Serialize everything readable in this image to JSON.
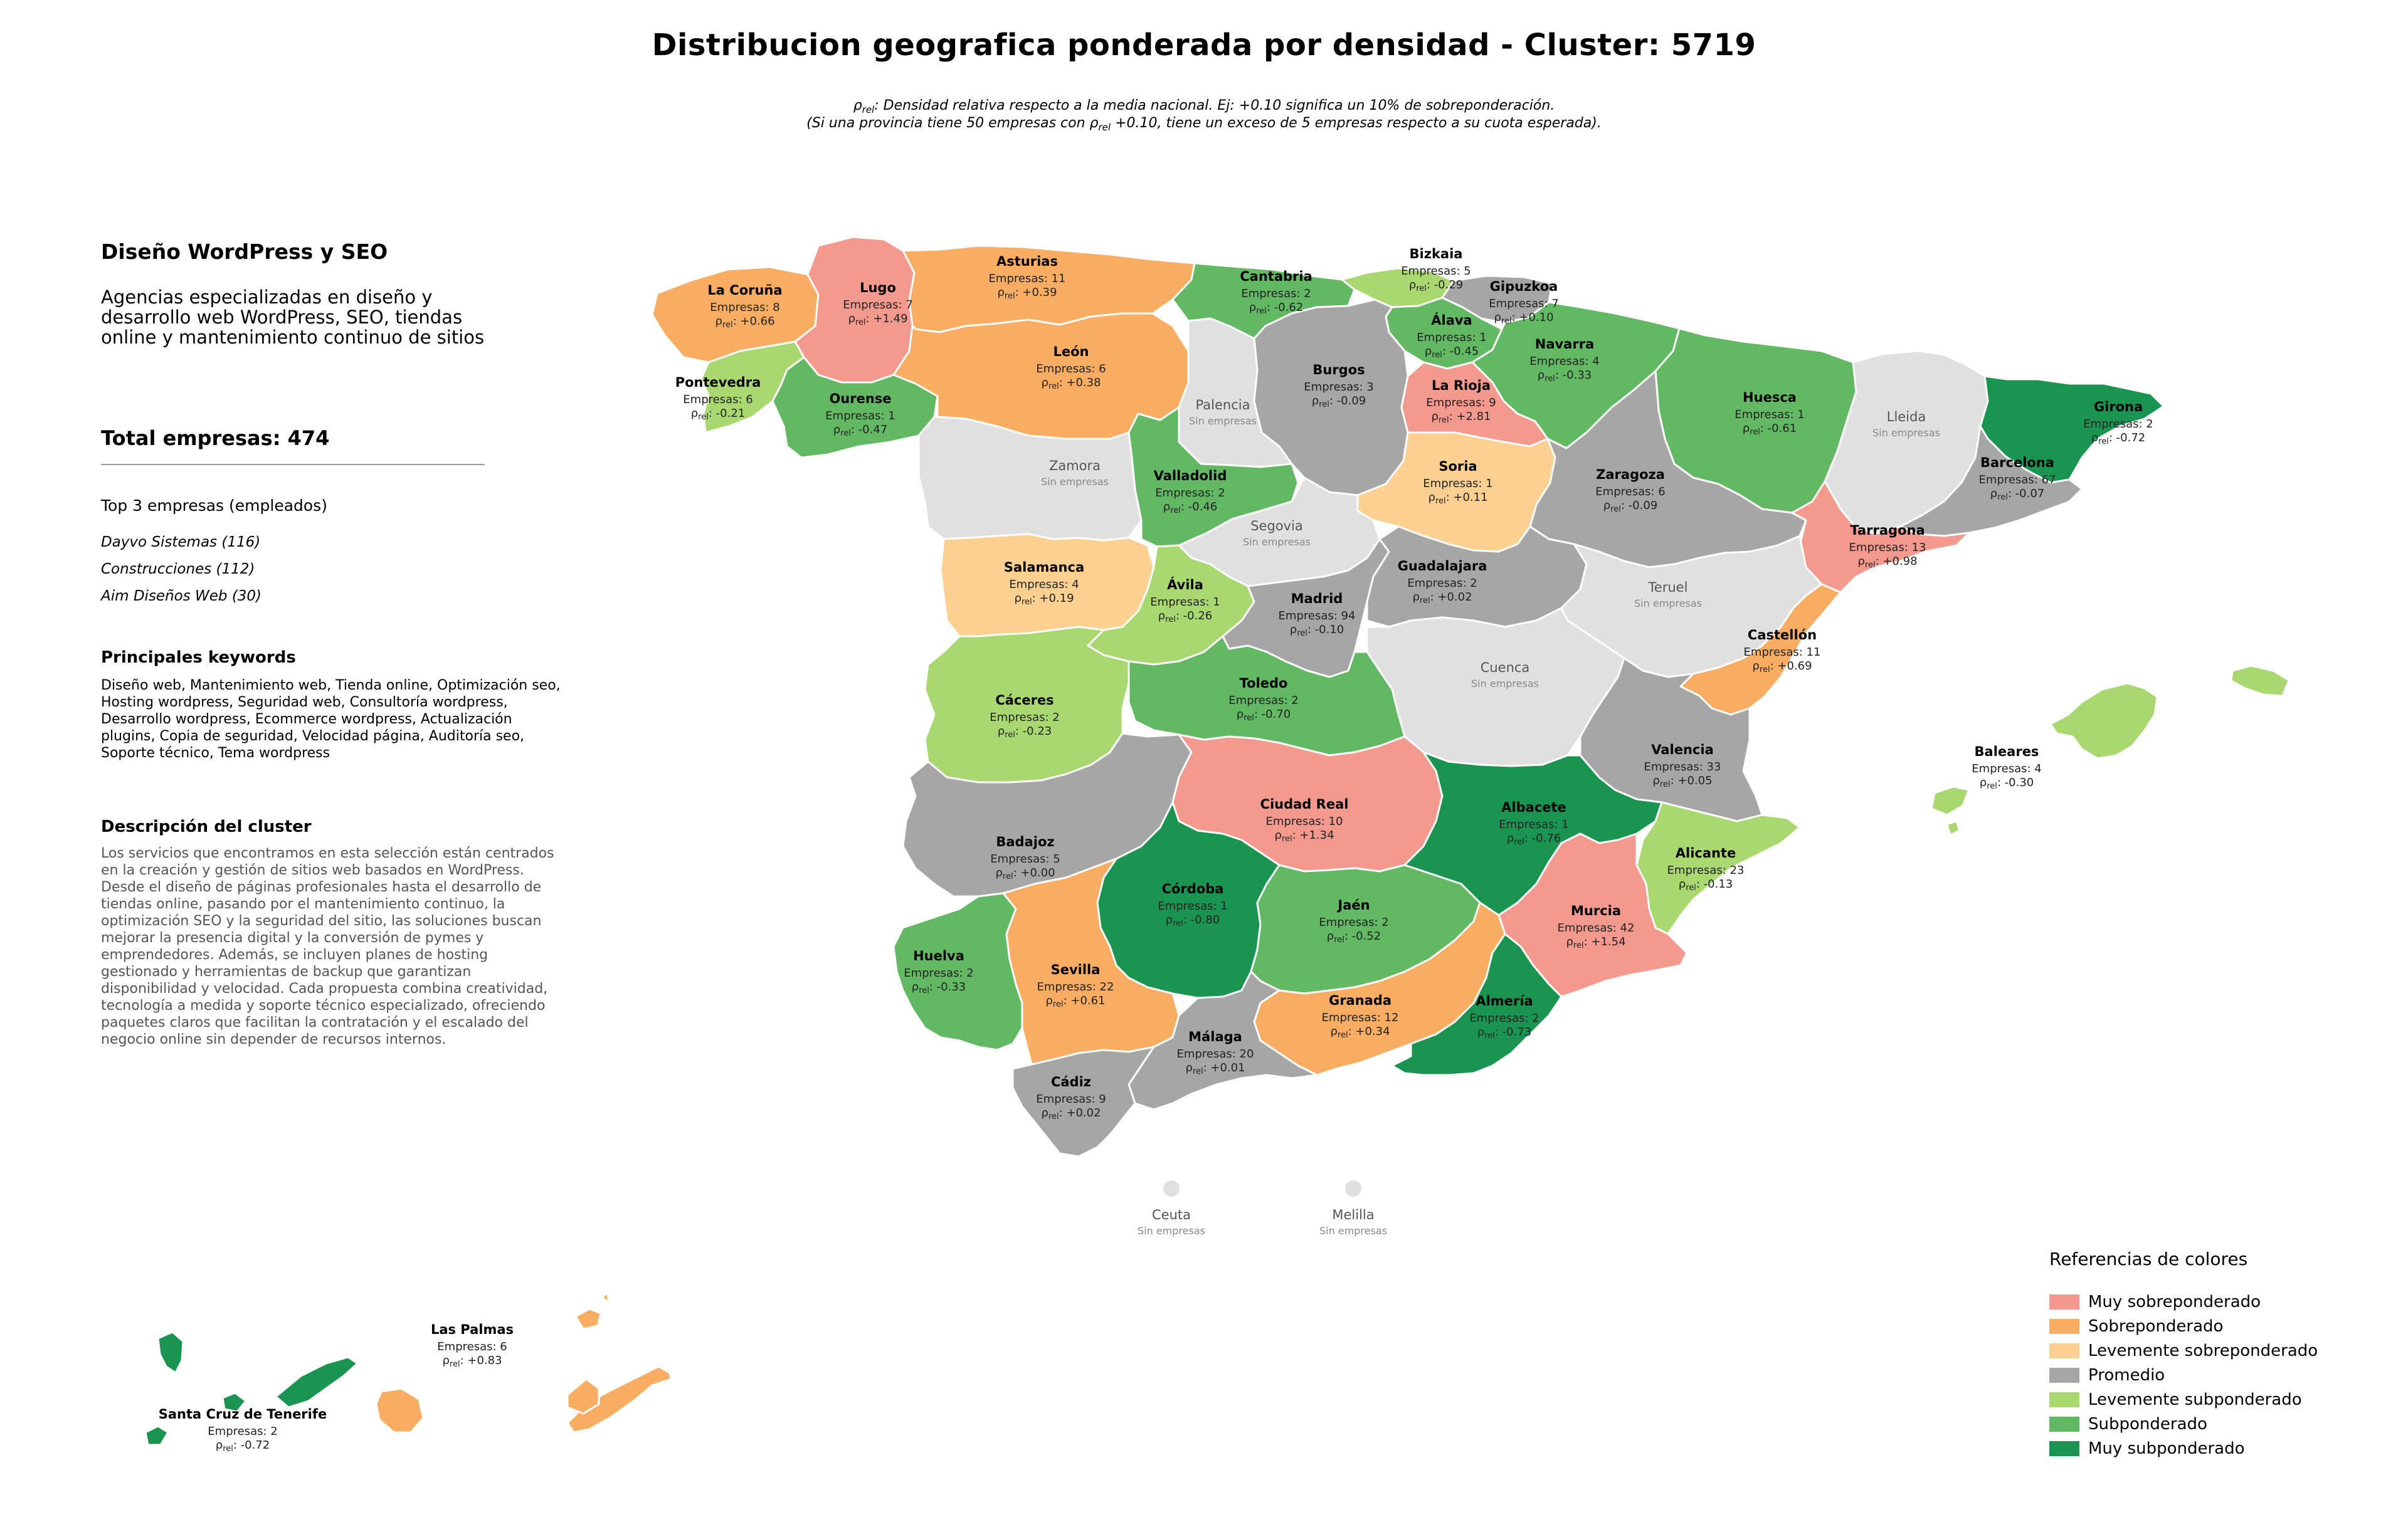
{
  "title": "Distribucion geografica ponderada por densidad - Cluster: 5719",
  "subtitle": {
    "line1_prefix": "ρ",
    "line1_sub": "rel",
    "line1_text": ": Densidad relativa respecto a la media nacional. Ej: +0.10 significa un 10% de sobreponderación.",
    "line2_prefix": "(Si una provincia tiene 50 empresas con ρ",
    "line2_sub": "rel",
    "line2_text": " +0.10, tiene un exceso de 5 empresas respecto a su cuota esperada)."
  },
  "panel": {
    "cluster_name": "Diseño WordPress y SEO",
    "summary": "Agencias especializadas en diseño y desarrollo web WordPress, SEO, tiendas online y mantenimiento continuo de sitios",
    "total": "Total empresas: 474",
    "top3_title": "Top 3 empresas (empleados)",
    "top_companies": [
      "Dayvo Sistemas (116)",
      "Construcciones (112)",
      "Aim Diseños Web (30)"
    ],
    "keywords_title": "Principales keywords",
    "keywords": "Diseño web, Mantenimiento web, Tienda online, Optimización seo, Hosting wordpress, Seguridad web, Consultoría wordpress, Desarrollo wordpress, Ecommerce wordpress, Actualización plugins, Copia de seguridad, Velocidad página, Auditoría seo, Soporte técnico, Tema wordpress",
    "description_title": "Descripción del cluster",
    "description": "Los servicios que encontramos en esta selección están centrados en la creación y gestión de sitios web basados en WordPress. Desde el diseño de páginas profesionales hasta el desarrollo de tiendas online, pasando por el mantenimiento continuo, la optimización SEO y la seguridad del sitio, las soluciones buscan mejorar la presencia digital y la conversión de pymes y emprendedores. Además, se incluyen planes de hosting gestionado y herramientas de backup que garantizan disponibilidad y velocidad. Cada propuesta combina creatividad, tecnología a medida y soporte técnico especializado, ofreciendo paquetes claros que facilitan la contratación y el escalado del negocio online sin depender de recursos internos."
  },
  "strings": {
    "empresas_prefix": "Empresas: ",
    "rho": "ρ",
    "rel": "rel",
    "sin_empresas": "Sin empresas"
  },
  "colors": {
    "muy_sobre": "#f4998d",
    "sobre": "#f9ad63",
    "lev_sobre": "#fcd090",
    "promedio": "#a6a6a6",
    "lev_sub": "#a8d86f",
    "sub": "#62b863",
    "muy_sub": "#1a9551",
    "sin_datos": "#e0e0e0"
  },
  "legend": {
    "title": "Referencias de colores",
    "items": [
      {
        "label": "Muy sobreponderado",
        "color": "#f4998d"
      },
      {
        "label": "Sobreponderado",
        "color": "#f9ad63"
      },
      {
        "label": "Levemente sobreponderado",
        "color": "#fcd090"
      },
      {
        "label": "Promedio",
        "color": "#a6a6a6"
      },
      {
        "label": "Levemente subponderado",
        "color": "#a8d86f"
      },
      {
        "label": "Subponderado",
        "color": "#62b863"
      },
      {
        "label": "Muy subponderado",
        "color": "#1a9551"
      }
    ]
  },
  "chart_data": {
    "type": "choropleth",
    "metric": "rho_rel",
    "provinces": [
      {
        "name": "La Coruña",
        "empresas": 8,
        "rho": "+0.66",
        "category": "sobre"
      },
      {
        "name": "Lugo",
        "empresas": 7,
        "rho": "+1.49",
        "category": "muy_sobre"
      },
      {
        "name": "Asturias",
        "empresas": 11,
        "rho": "+0.39",
        "category": "sobre"
      },
      {
        "name": "Cantabria",
        "empresas": 2,
        "rho": "-0.62",
        "category": "sub"
      },
      {
        "name": "Bizkaia",
        "empresas": 5,
        "rho": "-0.29",
        "category": "lev_sub"
      },
      {
        "name": "Gipuzkoa",
        "empresas": 7,
        "rho": "+0.10",
        "category": "promedio"
      },
      {
        "name": "Álava",
        "empresas": 1,
        "rho": "-0.45",
        "category": "sub"
      },
      {
        "name": "Navarra",
        "empresas": 4,
        "rho": "-0.33",
        "category": "sub"
      },
      {
        "name": "Pontevedra",
        "empresas": 6,
        "rho": "-0.21",
        "category": "lev_sub"
      },
      {
        "name": "Ourense",
        "empresas": 1,
        "rho": "-0.47",
        "category": "sub"
      },
      {
        "name": "León",
        "empresas": 6,
        "rho": "+0.38",
        "category": "sobre"
      },
      {
        "name": "Palencia",
        "empresas": null,
        "rho": null,
        "category": "sin_datos"
      },
      {
        "name": "Burgos",
        "empresas": 3,
        "rho": "-0.09",
        "category": "promedio"
      },
      {
        "name": "La Rioja",
        "empresas": 9,
        "rho": "+2.81",
        "category": "muy_sobre"
      },
      {
        "name": "Huesca",
        "empresas": 1,
        "rho": "-0.61",
        "category": "sub"
      },
      {
        "name": "Lleida",
        "empresas": null,
        "rho": null,
        "category": "sin_datos"
      },
      {
        "name": "Girona",
        "empresas": 2,
        "rho": "-0.72",
        "category": "muy_sub"
      },
      {
        "name": "Zamora",
        "empresas": null,
        "rho": null,
        "category": "sin_datos"
      },
      {
        "name": "Valladolid",
        "empresas": 2,
        "rho": "-0.46",
        "category": "sub"
      },
      {
        "name": "Soria",
        "empresas": 1,
        "rho": "+0.11",
        "category": "lev_sobre"
      },
      {
        "name": "Zaragoza",
        "empresas": 6,
        "rho": "-0.09",
        "category": "promedio"
      },
      {
        "name": "Barcelona",
        "empresas": 67,
        "rho": "-0.07",
        "category": "promedio"
      },
      {
        "name": "Tarragona",
        "empresas": 13,
        "rho": "+0.98",
        "category": "muy_sobre"
      },
      {
        "name": "Salamanca",
        "empresas": 4,
        "rho": "+0.19",
        "category": "lev_sobre"
      },
      {
        "name": "Segovia",
        "empresas": null,
        "rho": null,
        "category": "sin_datos"
      },
      {
        "name": "Ávila",
        "empresas": 1,
        "rho": "-0.26",
        "category": "lev_sub"
      },
      {
        "name": "Madrid",
        "empresas": 94,
        "rho": "-0.10",
        "category": "promedio"
      },
      {
        "name": "Guadalajara",
        "empresas": 2,
        "rho": "+0.02",
        "category": "promedio"
      },
      {
        "name": "Teruel",
        "empresas": null,
        "rho": null,
        "category": "sin_datos"
      },
      {
        "name": "Castellón",
        "empresas": 11,
        "rho": "+0.69",
        "category": "sobre"
      },
      {
        "name": "Cuenca",
        "empresas": null,
        "rho": null,
        "category": "sin_datos"
      },
      {
        "name": "Cáceres",
        "empresas": 2,
        "rho": "-0.23",
        "category": "lev_sub"
      },
      {
        "name": "Toledo",
        "empresas": 2,
        "rho": "-0.70",
        "category": "sub"
      },
      {
        "name": "Valencia",
        "empresas": 33,
        "rho": "+0.05",
        "category": "promedio"
      },
      {
        "name": "Baleares",
        "empresas": 4,
        "rho": "-0.30",
        "category": "lev_sub"
      },
      {
        "name": "Badajoz",
        "empresas": 5,
        "rho": "+0.00",
        "category": "promedio"
      },
      {
        "name": "Ciudad Real",
        "empresas": 10,
        "rho": "+1.34",
        "category": "muy_sobre"
      },
      {
        "name": "Albacete",
        "empresas": 1,
        "rho": "-0.76",
        "category": "muy_sub"
      },
      {
        "name": "Alicante",
        "empresas": 23,
        "rho": "-0.13",
        "category": "lev_sub"
      },
      {
        "name": "Córdoba",
        "empresas": 1,
        "rho": "-0.80",
        "category": "muy_sub"
      },
      {
        "name": "Jaén",
        "empresas": 2,
        "rho": "-0.52",
        "category": "sub"
      },
      {
        "name": "Murcia",
        "empresas": 42,
        "rho": "+1.54",
        "category": "muy_sobre"
      },
      {
        "name": "Huelva",
        "empresas": 2,
        "rho": "-0.33",
        "category": "sub"
      },
      {
        "name": "Sevilla",
        "empresas": 22,
        "rho": "+0.61",
        "category": "sobre"
      },
      {
        "name": "Granada",
        "empresas": 12,
        "rho": "+0.34",
        "category": "sobre"
      },
      {
        "name": "Almería",
        "empresas": 2,
        "rho": "-0.73",
        "category": "muy_sub"
      },
      {
        "name": "Málaga",
        "empresas": 20,
        "rho": "+0.01",
        "category": "promedio"
      },
      {
        "name": "Cádiz",
        "empresas": 9,
        "rho": "+0.02",
        "category": "promedio"
      },
      {
        "name": "Ceuta",
        "empresas": null,
        "rho": null,
        "category": "sin_datos"
      },
      {
        "name": "Melilla",
        "empresas": null,
        "rho": null,
        "category": "sin_datos"
      },
      {
        "name": "Las Palmas",
        "empresas": 6,
        "rho": "+0.83",
        "category": "sobre"
      },
      {
        "name": "Santa Cruz de Tenerife",
        "empresas": 2,
        "rho": "-0.72",
        "category": "muy_sub"
      }
    ]
  }
}
